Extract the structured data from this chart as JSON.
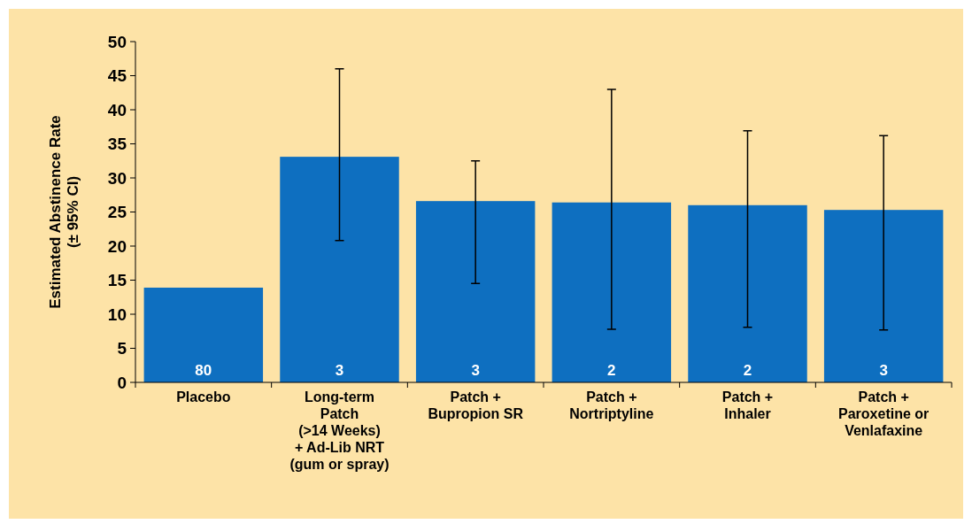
{
  "chart_data": {
    "type": "bar",
    "ylabel": "Estimated Abstinence Rate\n(± 95% CI)",
    "categories": [
      "Placebo",
      "Long-term\nPatch\n(>14 Weeks)\n+ Ad-Lib NRT\n(gum or spray)",
      "Patch +\nBupropion SR",
      "Patch +\nNortriptyline",
      "Patch +\nInhaler",
      "Patch +\nParoxetine or\nVenlafaxine"
    ],
    "values": [
      13.9,
      33.1,
      26.6,
      26.4,
      26.0,
      25.3
    ],
    "errors": [
      null,
      [
        20.8,
        46.0
      ],
      [
        14.5,
        32.5
      ],
      [
        7.8,
        43.0
      ],
      [
        8.1,
        36.9
      ],
      [
        7.7,
        36.2
      ]
    ],
    "color": "#0e6fc0",
    "ylim": [
      0,
      50
    ],
    "yticks": [
      0,
      5,
      10,
      15,
      20,
      25,
      30,
      35,
      40,
      45,
      50
    ],
    "annotations": [
      "80",
      "3",
      "3",
      "2",
      "2",
      "3"
    ]
  }
}
